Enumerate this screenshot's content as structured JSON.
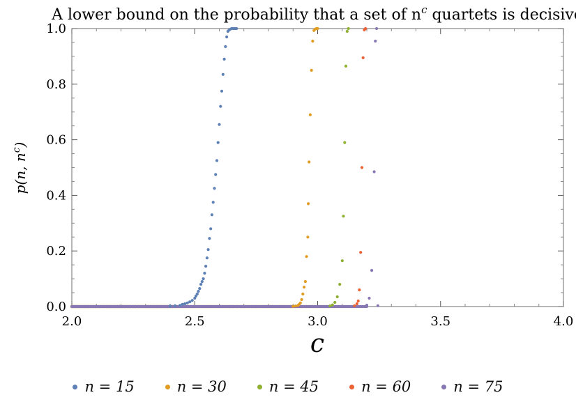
{
  "chart_data": {
    "type": "scatter",
    "title": "A lower bound on the probability that a set of n^c quartets is decisive",
    "xlabel": "c",
    "ylabel": "p(n, n^c)",
    "xlim": [
      2.0,
      4.0
    ],
    "ylim": [
      0.0,
      1.0
    ],
    "xticks": [
      "2.0",
      "2.5",
      "3.0",
      "3.5",
      "4.0"
    ],
    "yticks": [
      "0.0",
      "0.2",
      "0.4",
      "0.6",
      "0.8",
      "1.0"
    ],
    "grid": false,
    "legend_position": "bottom",
    "series": [
      {
        "name": "n = 15",
        "color": "#5E81B5",
        "points": [
          [
            2.4,
            0.002
          ],
          [
            2.42,
            0.003
          ],
          [
            2.44,
            0.004
          ],
          [
            2.45,
            0.008
          ],
          [
            2.46,
            0.01
          ],
          [
            2.47,
            0.013
          ],
          [
            2.48,
            0.017
          ],
          [
            2.49,
            0.022
          ],
          [
            2.5,
            0.03
          ],
          [
            2.505,
            0.038
          ],
          [
            2.51,
            0.045
          ],
          [
            2.515,
            0.055
          ],
          [
            2.52,
            0.065
          ],
          [
            2.525,
            0.08
          ],
          [
            2.53,
            0.09
          ],
          [
            2.535,
            0.1
          ],
          [
            2.54,
            0.12
          ],
          [
            2.545,
            0.145
          ],
          [
            2.55,
            0.175
          ],
          [
            2.555,
            0.205
          ],
          [
            2.56,
            0.245
          ],
          [
            2.565,
            0.28
          ],
          [
            2.57,
            0.33
          ],
          [
            2.575,
            0.375
          ],
          [
            2.58,
            0.425
          ],
          [
            2.585,
            0.475
          ],
          [
            2.59,
            0.525
          ],
          [
            2.595,
            0.59
          ],
          [
            2.6,
            0.655
          ],
          [
            2.605,
            0.72
          ],
          [
            2.61,
            0.775
          ],
          [
            2.615,
            0.835
          ],
          [
            2.62,
            0.89
          ],
          [
            2.625,
            0.935
          ],
          [
            2.63,
            0.97
          ],
          [
            2.635,
            0.99
          ],
          [
            2.64,
            0.995
          ],
          [
            2.645,
            0.998
          ],
          [
            2.65,
            1.0
          ],
          [
            2.655,
            1.0
          ],
          [
            2.66,
            1.0
          ],
          [
            2.665,
            1.0
          ],
          [
            2.67,
            1.0
          ]
        ]
      },
      {
        "name": "n = 30",
        "color": "#E19C24",
        "points": [
          [
            2.9,
            0.001
          ],
          [
            2.91,
            0.002
          ],
          [
            2.92,
            0.004
          ],
          [
            2.925,
            0.008
          ],
          [
            2.93,
            0.013
          ],
          [
            2.935,
            0.025
          ],
          [
            2.94,
            0.045
          ],
          [
            2.945,
            0.07
          ],
          [
            2.95,
            0.09
          ],
          [
            2.955,
            0.18
          ],
          [
            2.96,
            0.25
          ],
          [
            2.962,
            0.37
          ],
          [
            2.965,
            0.52
          ],
          [
            2.97,
            0.69
          ],
          [
            2.975,
            0.85
          ],
          [
            2.98,
            0.955
          ],
          [
            2.985,
            0.993
          ],
          [
            2.99,
            0.998
          ],
          [
            2.995,
            1.0
          ],
          [
            3.0,
            1.0
          ]
        ]
      },
      {
        "name": "n = 45",
        "color": "#8FB032",
        "points": [
          [
            3.05,
            0.002
          ],
          [
            3.06,
            0.006
          ],
          [
            3.07,
            0.015
          ],
          [
            3.08,
            0.035
          ],
          [
            3.09,
            0.08
          ],
          [
            3.1,
            0.165
          ],
          [
            3.105,
            0.325
          ],
          [
            3.11,
            0.59
          ],
          [
            3.115,
            0.865
          ],
          [
            3.12,
            0.99
          ],
          [
            3.125,
            1.0
          ]
        ]
      },
      {
        "name": "n = 60",
        "color": "#EB6235",
        "points": [
          [
            3.15,
            0.003
          ],
          [
            3.16,
            0.01
          ],
          [
            3.165,
            0.02
          ],
          [
            3.17,
            0.06
          ],
          [
            3.175,
            0.195
          ],
          [
            3.18,
            0.5
          ],
          [
            3.185,
            0.895
          ],
          [
            3.19,
            0.995
          ],
          [
            3.195,
            1.0
          ]
        ]
      },
      {
        "name": "n = 75",
        "color": "#8778B3",
        "points": [
          [
            3.2,
            0.005
          ],
          [
            3.21,
            0.03
          ],
          [
            3.22,
            0.13
          ],
          [
            3.23,
            0.485
          ],
          [
            3.235,
            0.955
          ],
          [
            3.24,
            1.0
          ],
          [
            3.245,
            0.003
          ]
        ]
      }
    ],
    "floor_series_note": ""
  }
}
